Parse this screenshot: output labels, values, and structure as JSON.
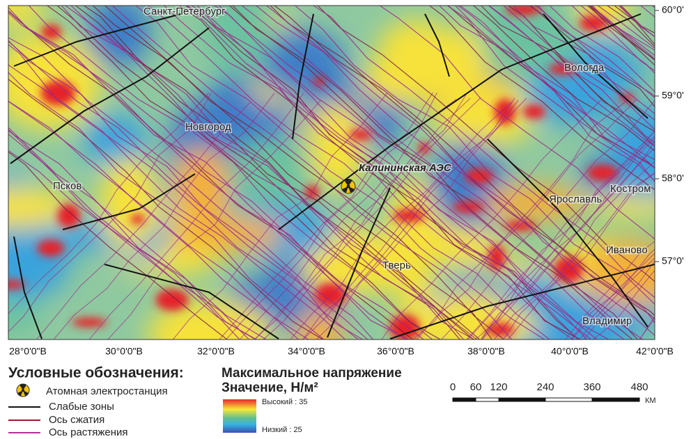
{
  "map": {
    "cities": [
      "Санкт-Петербург",
      "Новгород",
      "Псков",
      "Вологда",
      "Ярославль",
      "Костром",
      "Иваново",
      "Тверь",
      "Владимир"
    ],
    "plant_label": "Калининская АЭС",
    "lon_ticks": [
      "28°0'0\"В",
      "30°0'0\"В",
      "32°0'0\"В",
      "34°0'0\"В",
      "36°0'0\"В",
      "38°0'0\"В",
      "40°0'0\"В",
      "42°0'0\"В"
    ],
    "lat_ticks": [
      "60°0'",
      "59°0'",
      "58°0'",
      "57°0'"
    ]
  },
  "legend": {
    "title": "Условные обозначения:",
    "items": [
      "Атомная электростанция",
      "Слабые зоны",
      "Ось сжатия",
      "Ось растяжения"
    ]
  },
  "colorbar": {
    "title": "Максимальное напряжение",
    "subtitle": "Значение, Н/м²",
    "high": "Высокий : 35",
    "low": "Низкий : 25"
  },
  "scalebar": {
    "ticks": [
      "0",
      "60",
      "120",
      "240",
      "360",
      "480"
    ],
    "unit": "КМ"
  }
}
